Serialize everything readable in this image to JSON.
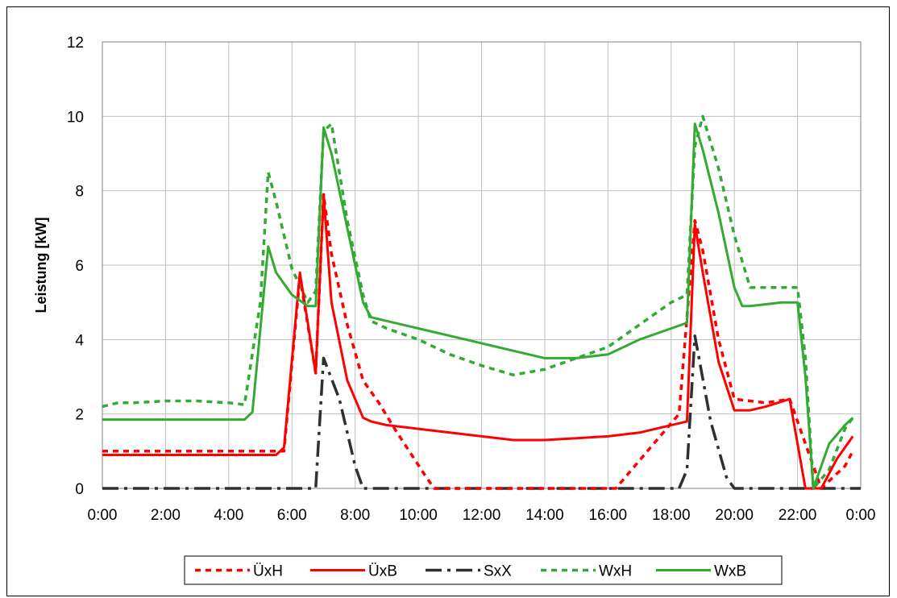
{
  "chart_data": {
    "type": "line",
    "title": "",
    "xlabel": "",
    "ylabel": "Leistung [kW]",
    "xlim": [
      0,
      24
    ],
    "ylim": [
      0,
      12
    ],
    "x_ticks": [
      0,
      2,
      4,
      6,
      8,
      10,
      12,
      14,
      16,
      18,
      20,
      22,
      24
    ],
    "x_tick_labels": [
      "0:00",
      "2:00",
      "4:00",
      "6:00",
      "8:00",
      "10:00",
      "12:00",
      "14:00",
      "16:00",
      "18:00",
      "20:00",
      "22:00",
      "0:00"
    ],
    "y_ticks": [
      0,
      2,
      4,
      6,
      8,
      10,
      12
    ],
    "y_tick_labels": [
      "0",
      "2",
      "4",
      "6",
      "8",
      "10",
      "12"
    ],
    "grid": true,
    "legend_position": "bottom",
    "series": [
      {
        "name": "ÜxH",
        "color": "#ff0000",
        "style": "dotted",
        "x": [
          0,
          5.75,
          6.25,
          6.75,
          7.0,
          7.25,
          7.75,
          8.25,
          8.75,
          9.25,
          10.25,
          10.5,
          16.25,
          17.25,
          18.25,
          18.75,
          19.0,
          19.5,
          20.0,
          21.0,
          21.75,
          22.75,
          23.5,
          23.75
        ],
        "y": [
          1.0,
          1.0,
          5.7,
          3.1,
          7.9,
          6.3,
          4.4,
          2.9,
          2.3,
          1.6,
          0.3,
          0.0,
          0.0,
          1.0,
          2.0,
          7.2,
          6.4,
          4.0,
          2.4,
          2.3,
          2.4,
          0.0,
          0.6,
          1.0
        ]
      },
      {
        "name": "ÜxB",
        "color": "#ff0000",
        "style": "solid",
        "x": [
          0,
          5.5,
          5.75,
          6.25,
          6.75,
          7.0,
          7.25,
          7.75,
          8.25,
          8.5,
          9.0,
          10.0,
          11.0,
          12.0,
          13.0,
          14.0,
          15.0,
          16.0,
          17.0,
          18.5,
          18.75,
          19.0,
          19.5,
          20.0,
          20.5,
          21.0,
          21.75,
          22.25,
          22.75,
          23.25,
          23.75
        ],
        "y": [
          0.9,
          0.9,
          1.1,
          5.8,
          3.1,
          7.9,
          5.0,
          2.9,
          1.9,
          1.8,
          1.7,
          1.6,
          1.5,
          1.4,
          1.3,
          1.3,
          1.35,
          1.4,
          1.5,
          1.8,
          7.1,
          5.8,
          3.4,
          2.1,
          2.1,
          2.2,
          2.4,
          0.0,
          0.0,
          0.8,
          1.4
        ]
      },
      {
        "name": "SxX",
        "color": "#303030",
        "style": "dashdot",
        "x": [
          0,
          6.5,
          6.75,
          7.0,
          7.5,
          8.0,
          8.25,
          18.25,
          18.5,
          18.75,
          19.25,
          19.75,
          20.0,
          24
        ],
        "y": [
          0,
          0,
          0.0,
          3.5,
          2.4,
          0.6,
          0.0,
          0.0,
          0.5,
          4.1,
          1.8,
          0.3,
          0.0,
          0
        ]
      },
      {
        "name": "WxH",
        "color": "#33aa33",
        "style": "dotted",
        "x": [
          0,
          0.5,
          1.0,
          2.0,
          3.0,
          4.0,
          4.5,
          5.0,
          5.25,
          5.5,
          6.0,
          6.5,
          6.75,
          7.0,
          7.25,
          7.75,
          8.25,
          8.5,
          9.0,
          10.0,
          11.0,
          12.0,
          13.0,
          14.0,
          15.0,
          16.0,
          17.0,
          18.0,
          18.5,
          18.75,
          19.0,
          19.5,
          20.0,
          20.5,
          21.0,
          21.75,
          22.0,
          22.25,
          22.5,
          23.0,
          23.5,
          23.75
        ],
        "y": [
          2.2,
          2.3,
          2.3,
          2.35,
          2.35,
          2.3,
          2.25,
          5.0,
          8.5,
          7.7,
          5.9,
          5.0,
          5.3,
          9.6,
          9.8,
          7.2,
          5.2,
          4.5,
          4.3,
          4.0,
          3.6,
          3.3,
          3.05,
          3.2,
          3.5,
          3.8,
          4.4,
          5.0,
          5.2,
          9.2,
          10.0,
          8.6,
          6.8,
          5.4,
          5.4,
          5.4,
          5.4,
          3.5,
          0.0,
          0.5,
          1.6,
          1.9
        ]
      },
      {
        "name": "WxB",
        "color": "#33aa33",
        "style": "solid",
        "x": [
          0,
          1.0,
          2.0,
          3.0,
          4.0,
          4.5,
          4.75,
          5.25,
          5.5,
          6.0,
          6.5,
          6.75,
          7.0,
          7.25,
          7.75,
          8.25,
          8.5,
          9.0,
          10.0,
          11.0,
          12.0,
          13.0,
          14.0,
          15.0,
          16.0,
          17.0,
          18.0,
          18.5,
          18.75,
          19.0,
          19.5,
          20.0,
          20.25,
          20.5,
          21.0,
          21.5,
          22.0,
          22.25,
          22.5,
          23.0,
          23.5,
          23.75
        ],
        "y": [
          1.85,
          1.85,
          1.85,
          1.85,
          1.85,
          1.85,
          2.05,
          6.5,
          5.8,
          5.2,
          4.9,
          4.9,
          9.7,
          9.0,
          7.0,
          5.0,
          4.6,
          4.5,
          4.3,
          4.1,
          3.9,
          3.7,
          3.5,
          3.5,
          3.6,
          4.0,
          4.3,
          4.45,
          9.8,
          9.1,
          7.4,
          5.4,
          4.9,
          4.9,
          4.95,
          5.0,
          5.0,
          3.0,
          0.0,
          1.2,
          1.7,
          1.9
        ]
      }
    ]
  }
}
